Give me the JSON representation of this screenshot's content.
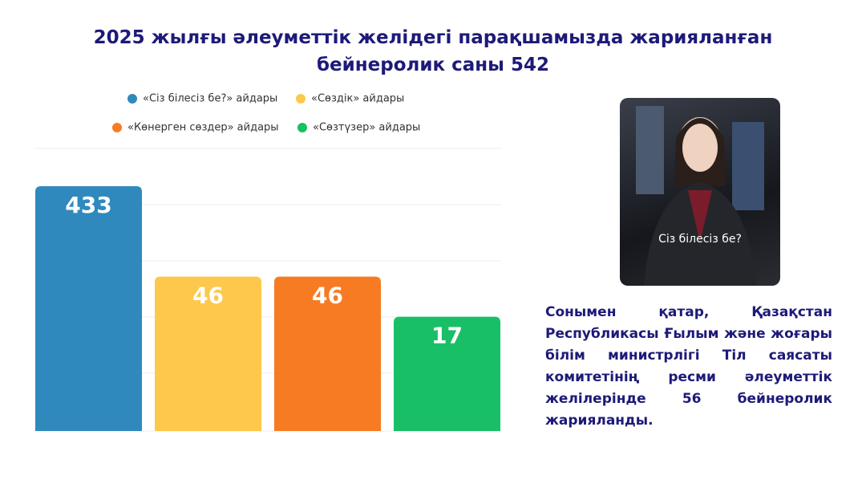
{
  "title": "2025 жылғы әлеуметтік желідегі парақшамызда жарияланған бейнеролик саны 542",
  "chart_data": {
    "type": "bar",
    "categories": [
      "«Сіз білесіз бе?» айдары",
      "«Сөздік» айдары",
      "«Көнерген сөздер» айдары",
      "«Сөзтүзер» айдары"
    ],
    "values": [
      433,
      46,
      46,
      17
    ],
    "colors": [
      "#2f89bd",
      "#fdc84b",
      "#f77b22",
      "#19bf66"
    ],
    "log_scale": true
  },
  "image_caption": "Сіз білесіз бе?",
  "paragraph": "Сонымен қатар, Қазақстан Республикасы Ғылым және жоғары білім министрлігі Тіл саясаты комитетінің ресми әлеуметтік желілерінде 56 бейнеролик жарияланды."
}
